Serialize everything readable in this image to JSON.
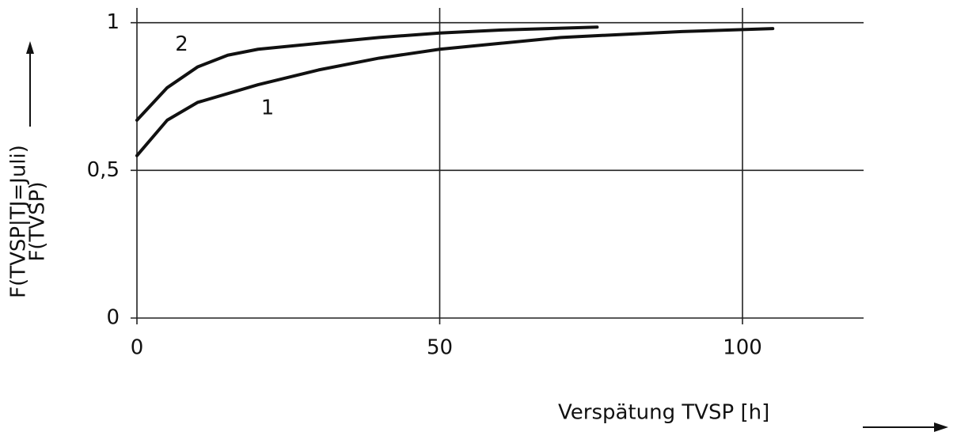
{
  "chart_data": {
    "type": "line",
    "ylabel": [
      "F(TVSP|TJ=Juli)",
      "F(TVSP)"
    ],
    "xlabel": "Verspätung TVSP [h]",
    "xlim": [
      0,
      120
    ],
    "ylim": [
      0,
      1.05
    ],
    "xticks": [
      0,
      50,
      100
    ],
    "yticks": [
      0,
      {
        "value": 0.5,
        "label": "0,5"
      },
      1
    ],
    "grid": true,
    "series": [
      {
        "name": "1",
        "color": "#111111",
        "x": [
          0,
          5,
          10,
          20,
          30,
          40,
          50,
          60,
          70,
          80,
          90,
          105
        ],
        "values": [
          0.55,
          0.67,
          0.73,
          0.79,
          0.84,
          0.88,
          0.91,
          0.93,
          0.95,
          0.96,
          0.97,
          0.98
        ]
      },
      {
        "name": "2",
        "color": "#111111",
        "x": [
          0,
          5,
          10,
          15,
          20,
          30,
          40,
          50,
          60,
          76
        ],
        "values": [
          0.67,
          0.78,
          0.85,
          0.89,
          0.91,
          0.93,
          0.95,
          0.965,
          0.975,
          0.985
        ]
      }
    ]
  }
}
